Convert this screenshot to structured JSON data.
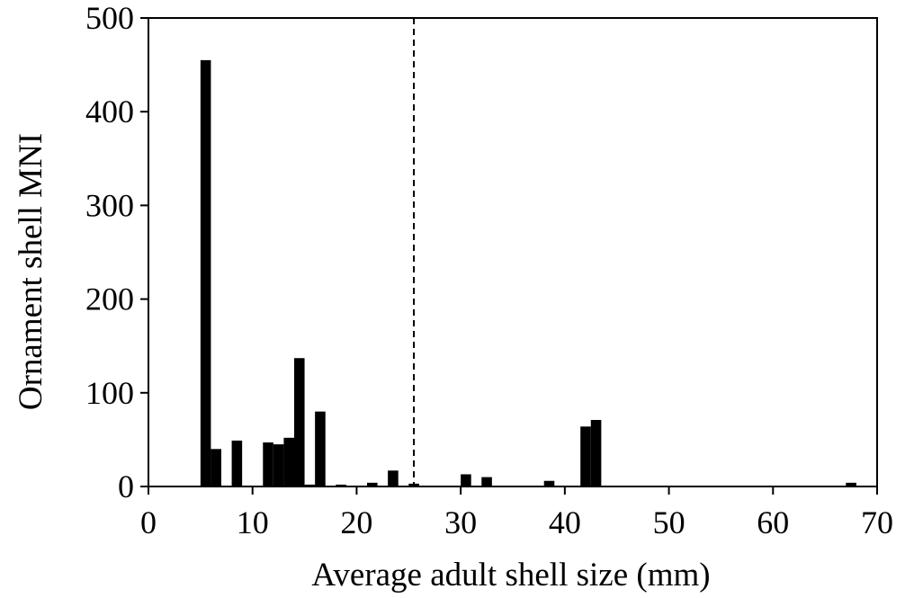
{
  "chart_data": {
    "type": "bar",
    "title": "",
    "xlabel": "Average adult shell size (mm)",
    "ylabel": "Ornament shell MNI",
    "xlim": [
      0,
      70
    ],
    "ylim": [
      0,
      500
    ],
    "x_ticks": [
      "0",
      "10",
      "20",
      "30",
      "40",
      "50",
      "60",
      "70"
    ],
    "y_ticks": [
      "0",
      "100",
      "200",
      "300",
      "400",
      "500"
    ],
    "grid": false,
    "reference_line": {
      "x": 25.5,
      "style": "dashed"
    },
    "bar_color": "#000000",
    "bars": [
      {
        "x": 5.5,
        "value": 455
      },
      {
        "x": 6.5,
        "value": 40
      },
      {
        "x": 8.5,
        "value": 49
      },
      {
        "x": 11.5,
        "value": 47
      },
      {
        "x": 12.5,
        "value": 45
      },
      {
        "x": 13.5,
        "value": 52
      },
      {
        "x": 14.5,
        "value": 137
      },
      {
        "x": 15.5,
        "value": 2
      },
      {
        "x": 16.5,
        "value": 80
      },
      {
        "x": 18.5,
        "value": 2
      },
      {
        "x": 21.5,
        "value": 4
      },
      {
        "x": 23.5,
        "value": 17
      },
      {
        "x": 25.5,
        "value": 3
      },
      {
        "x": 30.5,
        "value": 13
      },
      {
        "x": 32.5,
        "value": 10
      },
      {
        "x": 38.5,
        "value": 6
      },
      {
        "x": 42.0,
        "value": 64
      },
      {
        "x": 43.0,
        "value": 71
      },
      {
        "x": 67.5,
        "value": 4
      }
    ]
  }
}
